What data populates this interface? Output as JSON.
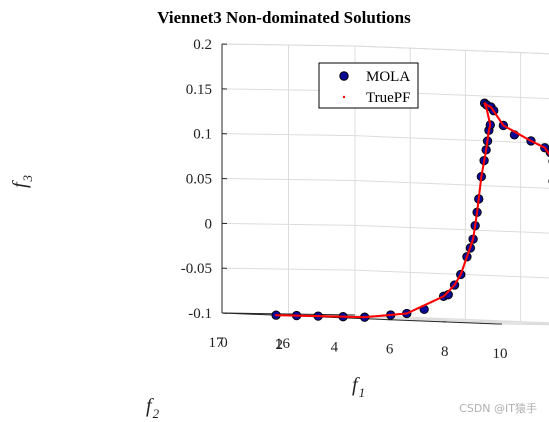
{
  "chart_data": {
    "type": "scatter",
    "title": "Viennet3 Non-dominated Solutions",
    "axes": {
      "x": {
        "name": "f",
        "sub": "1",
        "lim": [
          0,
          10
        ],
        "ticks": [
          "0",
          "2",
          "4",
          "6",
          "8",
          "10"
        ]
      },
      "y": {
        "name": "f",
        "sub": "2",
        "lim": [
          15,
          17
        ],
        "ticks": [
          "16",
          "17"
        ]
      },
      "z": {
        "name": "f",
        "sub": "3",
        "lim": [
          -0.1,
          0.2
        ],
        "ticks": [
          "-0.1",
          "-0.05",
          "0",
          "0.05",
          "0.1",
          "0.15",
          "0.2"
        ]
      }
    },
    "grid": true,
    "legend": {
      "position": "top-right",
      "entries": [
        "MOLA",
        "TruePF"
      ]
    },
    "colors": {
      "mola_fill": "#0a0a96",
      "mola_edge": "#000000",
      "truepf": "#ff0000"
    },
    "series": [
      {
        "name": "MOLA",
        "marker": "filled-circle",
        "points": [
          [
            1.96,
            17.0,
            -0.1
          ],
          [
            2.1,
            16.75,
            -0.1
          ],
          [
            2.4,
            16.55,
            -0.1
          ],
          [
            2.7,
            16.3,
            -0.1
          ],
          [
            3.0,
            16.1,
            -0.1
          ],
          [
            3.1,
            15.75,
            -0.097
          ],
          [
            3.2,
            15.55,
            -0.095
          ],
          [
            3.35,
            15.35,
            -0.09
          ],
          [
            3.5,
            15.12,
            -0.075
          ],
          [
            3.62,
            15.1,
            -0.073
          ],
          [
            3.8,
            15.08,
            -0.062
          ],
          [
            4.0,
            15.07,
            -0.05
          ],
          [
            4.2,
            15.06,
            -0.03
          ],
          [
            4.3,
            15.05,
            -0.02
          ],
          [
            4.4,
            15.05,
            -0.01
          ],
          [
            4.45,
            15.04,
            0.005
          ],
          [
            4.52,
            15.04,
            0.02
          ],
          [
            4.58,
            15.04,
            0.035
          ],
          [
            4.65,
            15.03,
            0.06
          ],
          [
            4.75,
            15.03,
            0.078
          ],
          [
            4.8,
            15.02,
            0.09
          ],
          [
            4.85,
            15.02,
            0.1
          ],
          [
            4.9,
            15.02,
            0.112
          ],
          [
            4.95,
            15.02,
            0.118
          ],
          [
            4.72,
            15.01,
            0.142
          ],
          [
            4.8,
            15.01,
            0.14
          ],
          [
            4.95,
            15.01,
            0.138
          ],
          [
            5.05,
            15.01,
            0.134
          ],
          [
            5.4,
            15.01,
            0.118
          ],
          [
            5.8,
            15.01,
            0.108
          ],
          [
            6.4,
            15.01,
            0.102
          ],
          [
            6.9,
            15.01,
            0.095
          ],
          [
            7.1,
            15.01,
            0.09
          ],
          [
            7.2,
            15.01,
            0.08
          ],
          [
            7.3,
            15.01,
            0.066
          ],
          [
            7.2,
            15.01,
            0.058
          ],
          [
            7.5,
            15.01,
            0.058
          ],
          [
            8.0,
            15.01,
            0.057
          ],
          [
            8.5,
            15.01,
            0.057
          ],
          [
            9.0,
            15.01,
            0.056
          ],
          [
            9.5,
            15.01,
            0.054
          ],
          [
            9.7,
            15.01,
            0.05
          ],
          [
            9.45,
            15.01,
            0.043
          ],
          [
            9.35,
            15.01,
            0.038
          ]
        ]
      },
      {
        "name": "TruePF",
        "marker": "point",
        "curve": [
          [
            1.96,
            17.0,
            -0.1
          ],
          [
            2.4,
            16.55,
            -0.1
          ],
          [
            3.0,
            16.1,
            -0.1
          ],
          [
            3.2,
            15.55,
            -0.095
          ],
          [
            3.5,
            15.12,
            -0.075
          ],
          [
            3.8,
            15.08,
            -0.062
          ],
          [
            4.0,
            15.07,
            -0.05
          ],
          [
            4.2,
            15.06,
            -0.03
          ],
          [
            4.4,
            15.05,
            -0.01
          ],
          [
            4.52,
            15.04,
            0.02
          ],
          [
            4.65,
            15.03,
            0.06
          ],
          [
            4.8,
            15.02,
            0.09
          ],
          [
            4.9,
            15.02,
            0.112
          ],
          [
            4.95,
            15.02,
            0.118
          ],
          [
            4.8,
            15.01,
            0.135
          ],
          [
            4.72,
            15.01,
            0.142
          ],
          [
            4.8,
            15.01,
            0.14
          ],
          [
            4.95,
            15.01,
            0.138
          ],
          [
            5.4,
            15.01,
            0.118
          ],
          [
            6.4,
            15.01,
            0.102
          ],
          [
            6.9,
            15.01,
            0.095
          ],
          [
            7.2,
            15.01,
            0.082
          ],
          [
            7.3,
            15.01,
            0.066
          ],
          [
            7.2,
            15.01,
            0.058
          ],
          [
            7.5,
            15.01,
            0.058
          ],
          [
            8.5,
            15.01,
            0.057
          ],
          [
            9.5,
            15.01,
            0.054
          ],
          [
            9.7,
            15.01,
            0.05
          ],
          [
            9.35,
            15.01,
            0.038
          ]
        ]
      }
    ]
  },
  "watermark": "CSDN @IT猿手"
}
